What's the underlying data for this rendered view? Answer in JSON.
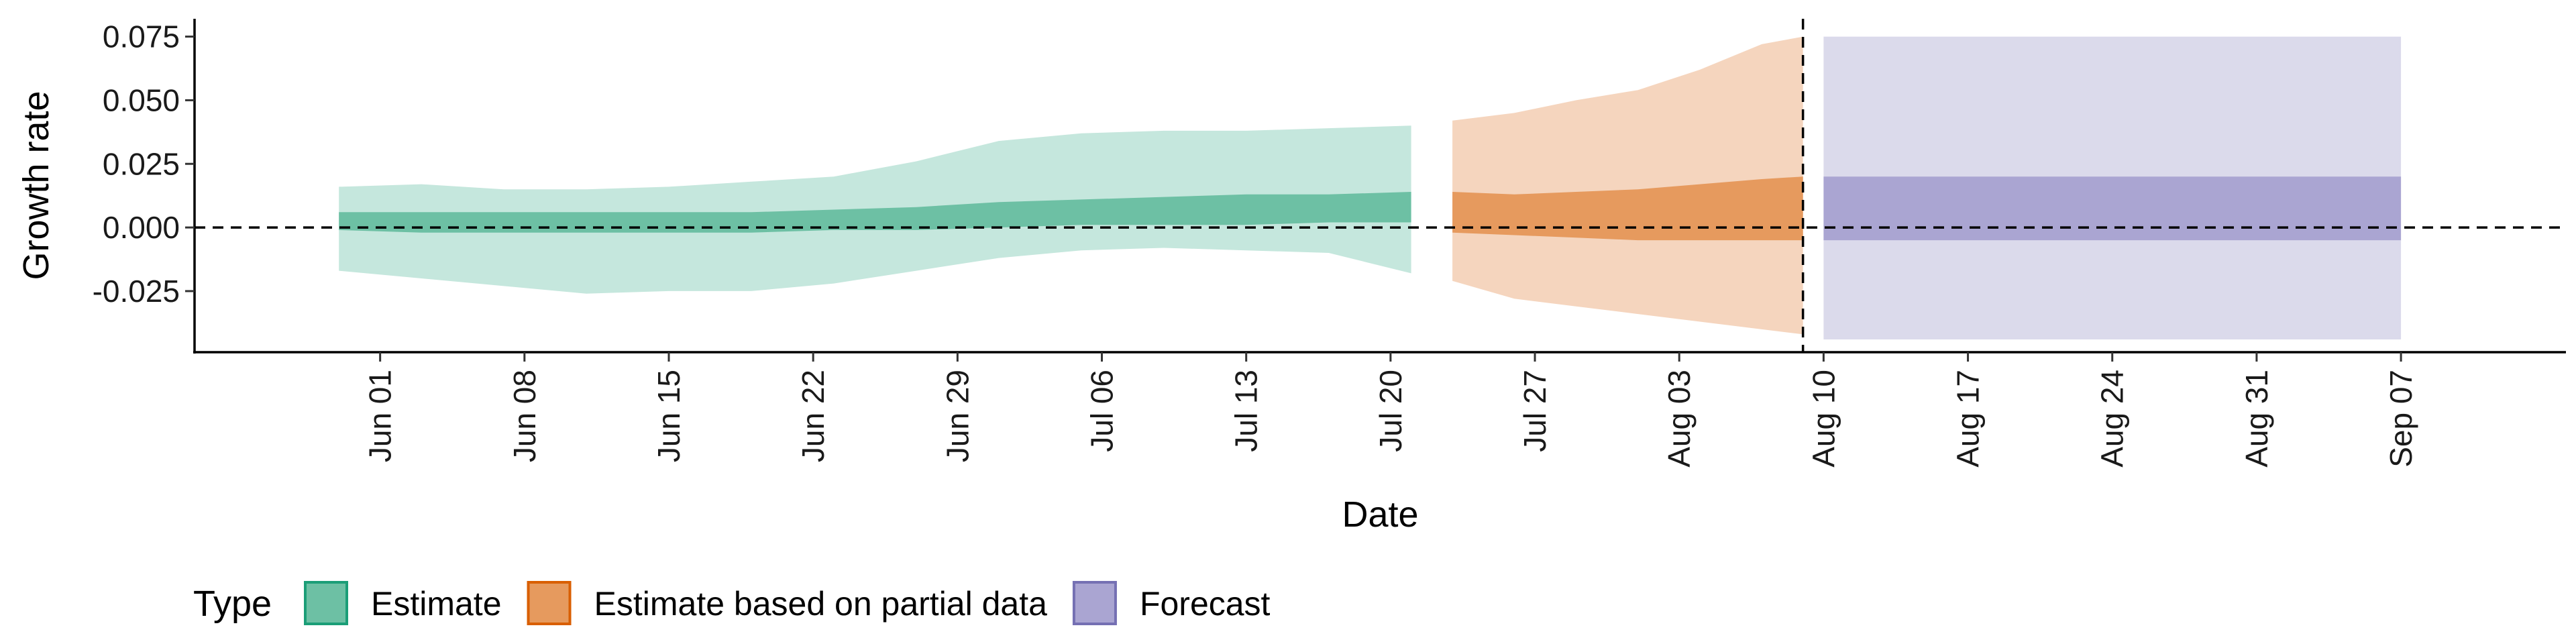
{
  "chart_data": {
    "type": "area",
    "xlabel": "Date",
    "ylabel": "Growth rate",
    "y_ticks": [
      0.075,
      0.05,
      0.025,
      0.0,
      -0.025
    ],
    "y_tick_labels": [
      "0.075",
      "0.050",
      "0.025",
      "0.000",
      "-0.025"
    ],
    "ylim": [
      -0.049,
      0.082
    ],
    "xlim": [
      "2020-05-23",
      "2020-09-15"
    ],
    "x_ticks": [
      "2020-06-01",
      "2020-06-08",
      "2020-06-15",
      "2020-06-22",
      "2020-06-29",
      "2020-07-06",
      "2020-07-13",
      "2020-07-20",
      "2020-07-27",
      "2020-08-03",
      "2020-08-10",
      "2020-08-17",
      "2020-08-24",
      "2020-08-31",
      "2020-09-07"
    ],
    "x_tick_labels": [
      "Jun 01",
      "Jun 08",
      "Jun 15",
      "Jun 22",
      "Jun 29",
      "Jul 06",
      "Jul 13",
      "Jul 20",
      "Jul 27",
      "Aug 03",
      "Aug 10",
      "Aug 17",
      "Aug 24",
      "Aug 31",
      "Sep 07"
    ],
    "reference_hline": 0.0,
    "reference_vline": "2020-08-09",
    "grid": false,
    "legend": {
      "title": "Type",
      "position": "bottom",
      "entries": [
        "Estimate",
        "Estimate based on partial data",
        "Forecast"
      ]
    },
    "series": [
      {
        "name": "Estimate",
        "color": "#1b9e77",
        "fill_outer": "#c5e7dd",
        "fill_inner": "#6dc0a4",
        "x": [
          "2020-05-30",
          "2020-06-03",
          "2020-06-07",
          "2020-06-11",
          "2020-06-15",
          "2020-06-19",
          "2020-06-23",
          "2020-06-27",
          "2020-07-01",
          "2020-07-05",
          "2020-07-09",
          "2020-07-13",
          "2020-07-17",
          "2020-07-21"
        ],
        "outer_upper": [
          0.016,
          0.017,
          0.015,
          0.015,
          0.016,
          0.018,
          0.02,
          0.026,
          0.034,
          0.037,
          0.038,
          0.038,
          0.039,
          0.04
        ],
        "outer_lower": [
          -0.017,
          -0.02,
          -0.023,
          -0.026,
          -0.025,
          -0.025,
          -0.022,
          -0.017,
          -0.012,
          -0.009,
          -0.008,
          -0.009,
          -0.01,
          -0.018
        ],
        "inner_upper": [
          0.006,
          0.006,
          0.006,
          0.006,
          0.006,
          0.006,
          0.007,
          0.008,
          0.01,
          0.011,
          0.012,
          0.013,
          0.013,
          0.014
        ],
        "inner_lower": [
          -0.001,
          -0.002,
          -0.002,
          -0.002,
          -0.002,
          -0.002,
          -0.001,
          -0.001,
          0.0,
          0.001,
          0.001,
          0.001,
          0.002,
          0.002
        ]
      },
      {
        "name": "Estimate based on partial data",
        "color": "#d95f02",
        "fill_outer": "#f5d5be",
        "fill_inner": "#e69a5e",
        "x": [
          "2020-07-23",
          "2020-07-26",
          "2020-07-29",
          "2020-08-01",
          "2020-08-04",
          "2020-08-07",
          "2020-08-09"
        ],
        "outer_upper": [
          0.042,
          0.045,
          0.05,
          0.054,
          0.062,
          0.072,
          0.075
        ],
        "outer_lower": [
          -0.021,
          -0.028,
          -0.031,
          -0.034,
          -0.037,
          -0.04,
          -0.042
        ],
        "inner_upper": [
          0.014,
          0.013,
          0.014,
          0.015,
          0.017,
          0.019,
          0.02
        ],
        "inner_lower": [
          -0.002,
          -0.003,
          -0.004,
          -0.005,
          -0.005,
          -0.005,
          -0.005
        ]
      },
      {
        "name": "Forecast",
        "color": "#7570b3",
        "fill_outer": "#dbdaeb",
        "fill_inner": "#aaa5d2",
        "x": [
          "2020-08-10",
          "2020-09-07"
        ],
        "outer_upper": [
          0.075,
          0.075
        ],
        "outer_lower": [
          -0.044,
          -0.044
        ],
        "inner_upper": [
          0.02,
          0.02
        ],
        "inner_lower": [
          -0.005,
          -0.005
        ]
      }
    ]
  }
}
